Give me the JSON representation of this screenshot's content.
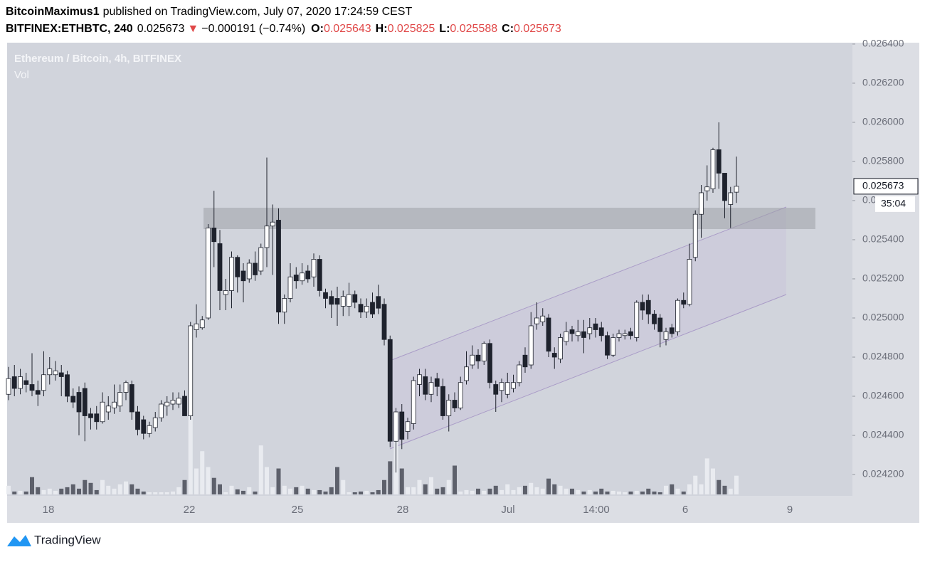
{
  "header": {
    "author": "BitcoinMaximus1",
    "published": "published on TradingView.com, July 07, 2020 17:24:59 CEST",
    "symbol": "BITFINEX:ETHBTC, 240",
    "arrow": "▼",
    "change": "−0.000191 (−0.74%)",
    "o_label": "O:",
    "h_label": "H:",
    "l_label": "L:",
    "c_label": "C:"
  },
  "footer": {
    "brand": "TradingView"
  },
  "chart_data": {
    "type": "candlestick",
    "title": "Ethereum / Bitcoin, 4h, BITFINEX",
    "subtitle": "Vol",
    "countdown": "35:04",
    "up_color": "#ffffff",
    "down_color": "#1e222d",
    "volume_up_color": "#e9ebf0",
    "volume_down_color": "#5d606b",
    "ylim": [
      0.024091,
      0.026407
    ],
    "yticks": [
      {
        "value": 0.0242,
        "label": "0.024200"
      },
      {
        "value": 0.0244,
        "label": "0.024400"
      },
      {
        "value": 0.0246,
        "label": "0.024600"
      },
      {
        "value": 0.0248,
        "label": "0.024800"
      },
      {
        "value": 0.025,
        "label": "0.025000"
      },
      {
        "value": 0.0252,
        "label": "0.025200"
      },
      {
        "value": 0.0254,
        "label": "0.025400"
      },
      {
        "value": 0.0256,
        "label": "0.025600"
      },
      {
        "value": 0.0258,
        "label": "0.025800"
      },
      {
        "value": 0.026,
        "label": "0.026000"
      },
      {
        "value": 0.0262,
        "label": "0.026200"
      },
      {
        "value": 0.0264,
        "label": "0.026400"
      }
    ],
    "xticks": [
      "18",
      "22",
      "25",
      "28",
      "Jul",
      "14:00",
      "6",
      "9"
    ],
    "open": [
      0.02461,
      0.0247,
      0.02464,
      0.02468,
      0.02466,
      0.02463,
      0.02463,
      0.02471,
      0.02471,
      0.02472,
      0.02471,
      0.0246,
      0.02462,
      0.02464,
      0.02451,
      0.02451,
      0.02447,
      0.02452,
      0.02454,
      0.02455,
      0.02462,
      0.02466,
      0.02452,
      0.02448,
      0.02441,
      0.02444,
      0.02449,
      0.02455,
      0.02456,
      0.02456,
      0.0246,
      0.0245,
      0.02494,
      0.02495,
      0.025,
      0.02546,
      0.02538,
      0.02512,
      0.02514,
      0.02531,
      0.02524,
      0.0252,
      0.02528,
      0.02524,
      0.02536,
      0.02547,
      0.0255,
      0.02503,
      0.0251,
      0.02522,
      0.02519,
      0.02524,
      0.02521,
      0.0253,
      0.02513,
      0.02511,
      0.0251,
      0.02506,
      0.02506,
      0.02512,
      0.02507,
      0.02503,
      0.02508,
      0.02511,
      0.02507,
      0.02489,
      0.02437,
      0.02452,
      0.02442,
      0.02446,
      0.02466,
      0.0247,
      0.02461,
      0.02469,
      0.02465,
      0.0245,
      0.02458,
      0.02454,
      0.02468,
      0.02476,
      0.02481,
      0.02478,
      0.02487,
      0.02466,
      0.02463,
      0.02461,
      0.02464,
      0.02467,
      0.02481,
      0.02476,
      0.02497,
      0.02498,
      0.025,
      0.02482,
      0.02479,
      0.02488,
      0.02494,
      0.02491,
      0.02493,
      0.02492,
      0.02497,
      0.02495,
      0.02491,
      0.02481,
      0.0249,
      0.02491,
      0.02493,
      0.0249,
      0.02508,
      0.02509,
      0.02502,
      0.025,
      0.02489,
      0.02495,
      0.02493,
      0.02509,
      0.02507,
      0.02531,
      0.02553,
      0.02565,
      0.02566,
      0.02586,
      0.02574,
      0.02558,
      0.025643
    ],
    "high": [
      0.02475,
      0.02476,
      0.02474,
      0.02472,
      0.02482,
      0.02468,
      0.02483,
      0.0248,
      0.02478,
      0.02476,
      0.02473,
      0.02464,
      0.02465,
      0.02467,
      0.02454,
      0.02455,
      0.02462,
      0.0246,
      0.02466,
      0.02466,
      0.02468,
      0.02468,
      0.02455,
      0.0245,
      0.02447,
      0.02452,
      0.02458,
      0.0246,
      0.02462,
      0.02462,
      0.02463,
      0.02498,
      0.02507,
      0.02501,
      0.02548,
      0.02565,
      0.02545,
      0.0252,
      0.02534,
      0.02532,
      0.02528,
      0.0253,
      0.02534,
      0.02538,
      0.02582,
      0.02558,
      0.02556,
      0.02512,
      0.02528,
      0.02526,
      0.02528,
      0.02527,
      0.02533,
      0.02532,
      0.02515,
      0.02514,
      0.02516,
      0.02514,
      0.02518,
      0.02514,
      0.0251,
      0.0251,
      0.02513,
      0.02517,
      0.0251,
      0.02491,
      0.02454,
      0.02456,
      0.02449,
      0.0247,
      0.02474,
      0.02474,
      0.0247,
      0.02472,
      0.02469,
      0.02461,
      0.02462,
      0.0247,
      0.02483,
      0.02486,
      0.02484,
      0.02488,
      0.02489,
      0.02468,
      0.02469,
      0.02472,
      0.02471,
      0.02478,
      0.02485,
      0.02503,
      0.02508,
      0.02505,
      0.02502,
      0.02485,
      0.02492,
      0.02498,
      0.02496,
      0.02499,
      0.02499,
      0.025,
      0.025,
      0.02498,
      0.02493,
      0.02492,
      0.02494,
      0.02494,
      0.02495,
      0.02509,
      0.02512,
      0.02512,
      0.02504,
      0.02502,
      0.02495,
      0.02497,
      0.0251,
      0.02513,
      0.02538,
      0.02555,
      0.02568,
      0.02578,
      0.02587,
      0.026,
      0.02574,
      0.02567,
      0.025825
    ],
    "low": [
      0.02458,
      0.0246,
      0.02461,
      0.02462,
      0.0246,
      0.02455,
      0.0246,
      0.02466,
      0.02468,
      0.0246,
      0.02457,
      0.02454,
      0.0244,
      0.02437,
      0.02443,
      0.02443,
      0.02446,
      0.02448,
      0.02451,
      0.02452,
      0.02458,
      0.02448,
      0.0244,
      0.02438,
      0.02439,
      0.02442,
      0.02447,
      0.0245,
      0.02453,
      0.02454,
      0.0245,
      0.02448,
      0.0249,
      0.02494,
      0.02499,
      0.02526,
      0.02504,
      0.02504,
      0.02505,
      0.02513,
      0.02508,
      0.02518,
      0.02519,
      0.02522,
      0.02526,
      0.02522,
      0.02497,
      0.02497,
      0.02508,
      0.02515,
      0.02517,
      0.02518,
      0.02516,
      0.02511,
      0.02505,
      0.025,
      0.02496,
      0.02501,
      0.02501,
      0.02505,
      0.025,
      0.025,
      0.025,
      0.02502,
      0.02486,
      0.02434,
      0.02421,
      0.02433,
      0.02438,
      0.02443,
      0.0246,
      0.02458,
      0.02457,
      0.0246,
      0.02448,
      0.02442,
      0.02452,
      0.02453,
      0.02466,
      0.02474,
      0.02474,
      0.02476,
      0.02464,
      0.02452,
      0.02457,
      0.02459,
      0.02462,
      0.02465,
      0.02472,
      0.02474,
      0.02494,
      0.02496,
      0.0248,
      0.02474,
      0.02477,
      0.02486,
      0.02488,
      0.02488,
      0.02482,
      0.02489,
      0.0249,
      0.02488,
      0.02479,
      0.0248,
      0.02488,
      0.02489,
      0.02489,
      0.02488,
      0.02499,
      0.02497,
      0.02494,
      0.02485,
      0.02486,
      0.0249,
      0.02491,
      0.02505,
      0.02506,
      0.02529,
      0.02541,
      0.0256,
      0.02564,
      0.02566,
      0.02551,
      0.02546,
      0.025588
    ],
    "close": [
      0.02469,
      0.02464,
      0.0247,
      0.02466,
      0.02463,
      0.02461,
      0.02471,
      0.02474,
      0.02473,
      0.0247,
      0.0246,
      0.02457,
      0.02452,
      0.0245,
      0.02449,
      0.02447,
      0.02457,
      0.02455,
      0.02457,
      0.02462,
      0.02467,
      0.02452,
      0.02443,
      0.02441,
      0.02445,
      0.02449,
      0.02456,
      0.02457,
      0.02458,
      0.02459,
      0.0245,
      0.02496,
      0.02497,
      0.02499,
      0.02546,
      0.02539,
      0.02514,
      0.02514,
      0.02531,
      0.02521,
      0.02519,
      0.02528,
      0.02522,
      0.02536,
      0.02547,
      0.02549,
      0.02503,
      0.0251,
      0.02521,
      0.02519,
      0.02523,
      0.0252,
      0.0253,
      0.02514,
      0.0251,
      0.02507,
      0.02507,
      0.02511,
      0.02512,
      0.02508,
      0.02503,
      0.02506,
      0.02502,
      0.02505,
      0.02489,
      0.02437,
      0.02452,
      0.02438,
      0.02447,
      0.02468,
      0.02471,
      0.02461,
      0.02467,
      0.02465,
      0.0245,
      0.02458,
      0.02454,
      0.02467,
      0.02475,
      0.02481,
      0.02478,
      0.02487,
      0.02467,
      0.02461,
      0.02467,
      0.02467,
      0.02467,
      0.02476,
      0.02475,
      0.02496,
      0.025,
      0.02501,
      0.02483,
      0.0248,
      0.0249,
      0.02493,
      0.02492,
      0.02493,
      0.0249,
      0.02495,
      0.02494,
      0.02491,
      0.02481,
      0.0249,
      0.02492,
      0.02492,
      0.02491,
      0.02508,
      0.02504,
      0.02502,
      0.02497,
      0.02493,
      0.02493,
      0.02492,
      0.02509,
      0.02507,
      0.0253,
      0.02553,
      0.02564,
      0.02567,
      0.02586,
      0.02574,
      0.0256,
      0.02564,
      0.025673
    ],
    "volume": [
      12,
      4,
      5,
      4,
      24,
      10,
      6,
      8,
      5,
      8,
      10,
      14,
      8,
      20,
      16,
      6,
      20,
      12,
      8,
      14,
      18,
      14,
      8,
      4,
      3,
      3,
      3,
      3,
      4,
      10,
      20,
      158,
      36,
      60,
      38,
      23,
      14,
      3,
      12,
      7,
      5,
      10,
      4,
      68,
      38,
      10,
      36,
      12,
      8,
      10,
      12,
      8,
      6,
      6,
      4,
      10,
      38,
      20,
      3,
      3,
      4,
      5,
      3,
      6,
      20,
      46,
      98,
      36,
      10,
      10,
      20,
      14,
      24,
      8,
      10,
      20,
      40,
      4,
      6,
      5,
      8,
      5,
      8,
      12,
      6,
      14,
      6,
      10,
      12,
      16,
      10,
      8,
      22,
      14,
      12,
      8,
      8,
      6,
      4,
      6,
      4,
      8,
      4,
      5,
      4,
      3,
      4,
      5,
      4,
      8,
      4,
      3,
      12,
      14,
      8,
      4,
      14,
      26,
      14,
      50,
      36,
      20,
      12,
      8,
      26
    ]
  }
}
